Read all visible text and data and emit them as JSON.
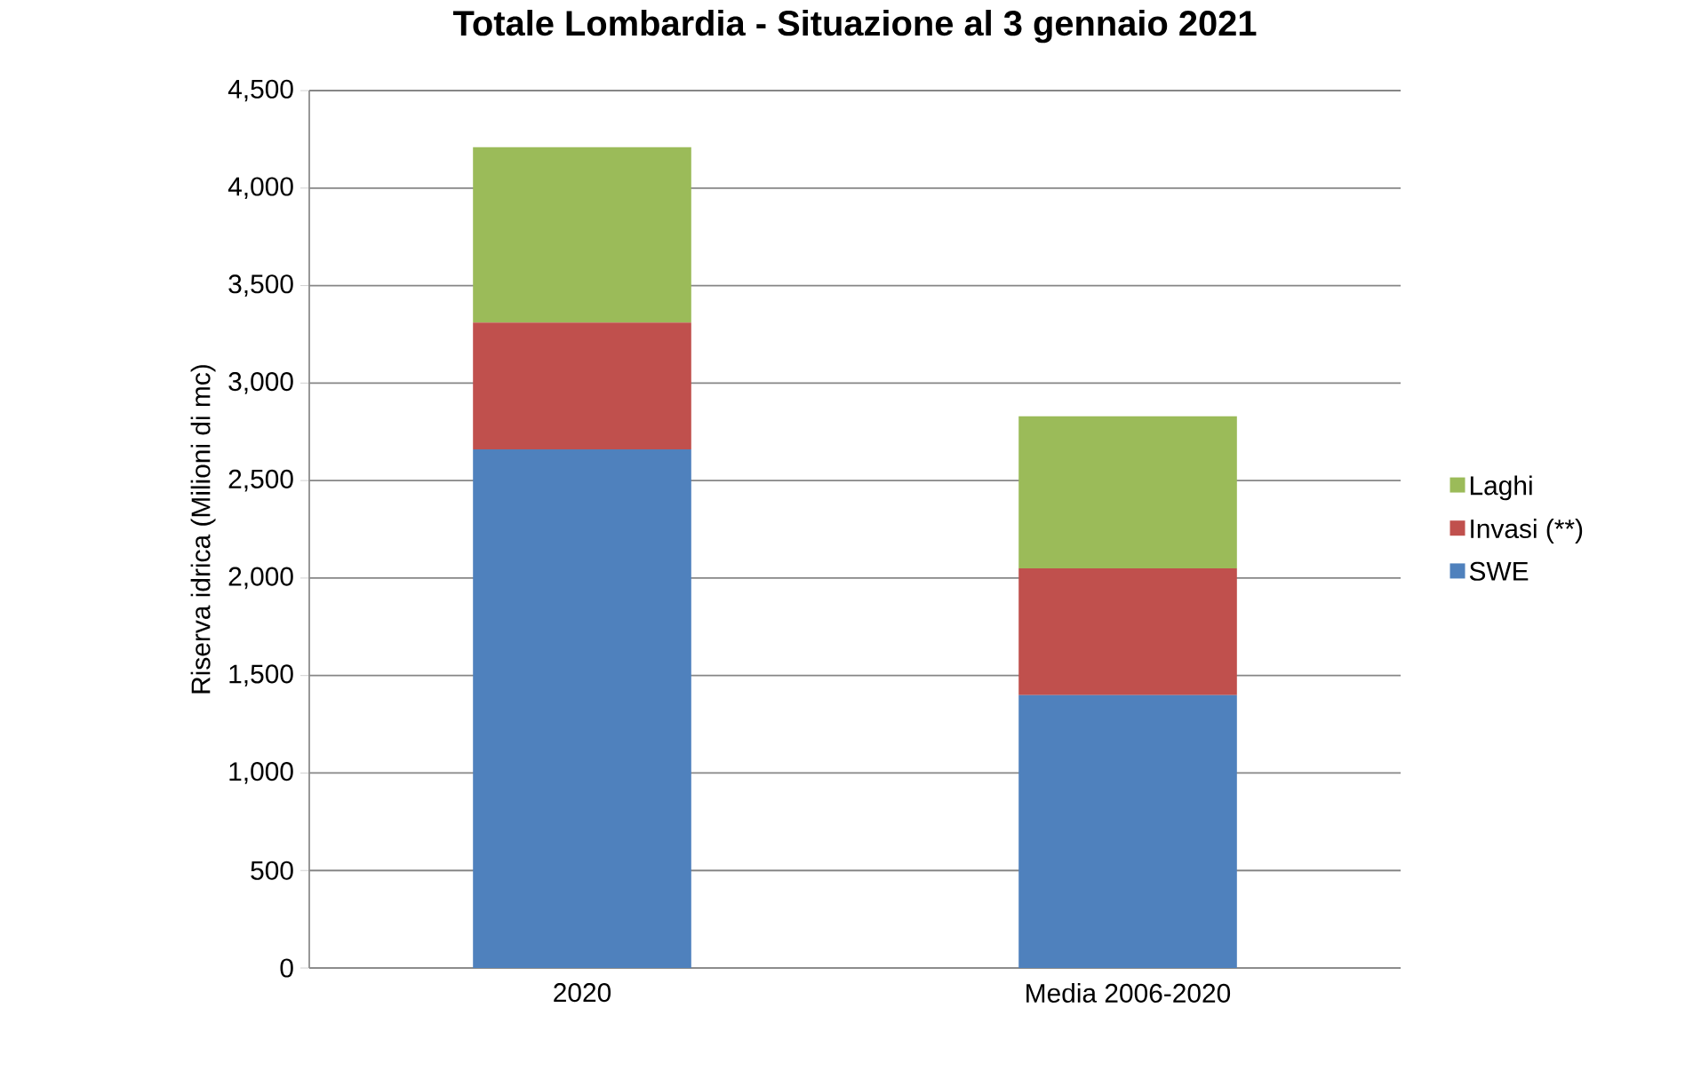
{
  "chart_data": {
    "type": "bar",
    "title": "Totale Lombardia - Situazione al 3 gennaio 2021",
    "ylabel": "Riserva idrica  (Milioni di mc)",
    "categories": [
      "2020",
      "Media 2006-2020"
    ],
    "stacked": true,
    "series": [
      {
        "name": "SWE",
        "color": "#4f81bd",
        "values": [
          2660,
          1400
        ]
      },
      {
        "name": "Invasi (**)",
        "color": "#c0504d",
        "values": [
          650,
          650
        ]
      },
      {
        "name": "Laghi",
        "color": "#9bbb59",
        "values": [
          900,
          780
        ]
      }
    ],
    "ylim": [
      0,
      4500
    ],
    "yticks": [
      {
        "value": 0,
        "label": "0"
      },
      {
        "value": 500,
        "label": "500"
      },
      {
        "value": 1000,
        "label": "1,000"
      },
      {
        "value": 1500,
        "label": "1,500"
      },
      {
        "value": 2000,
        "label": "2,000"
      },
      {
        "value": 2500,
        "label": "2,500"
      },
      {
        "value": 3000,
        "label": "3,000"
      },
      {
        "value": 3500,
        "label": "3,500"
      },
      {
        "value": 4000,
        "label": "4,000"
      },
      {
        "value": 4500,
        "label": "4,500"
      }
    ],
    "grid": "y",
    "legend": "right"
  }
}
